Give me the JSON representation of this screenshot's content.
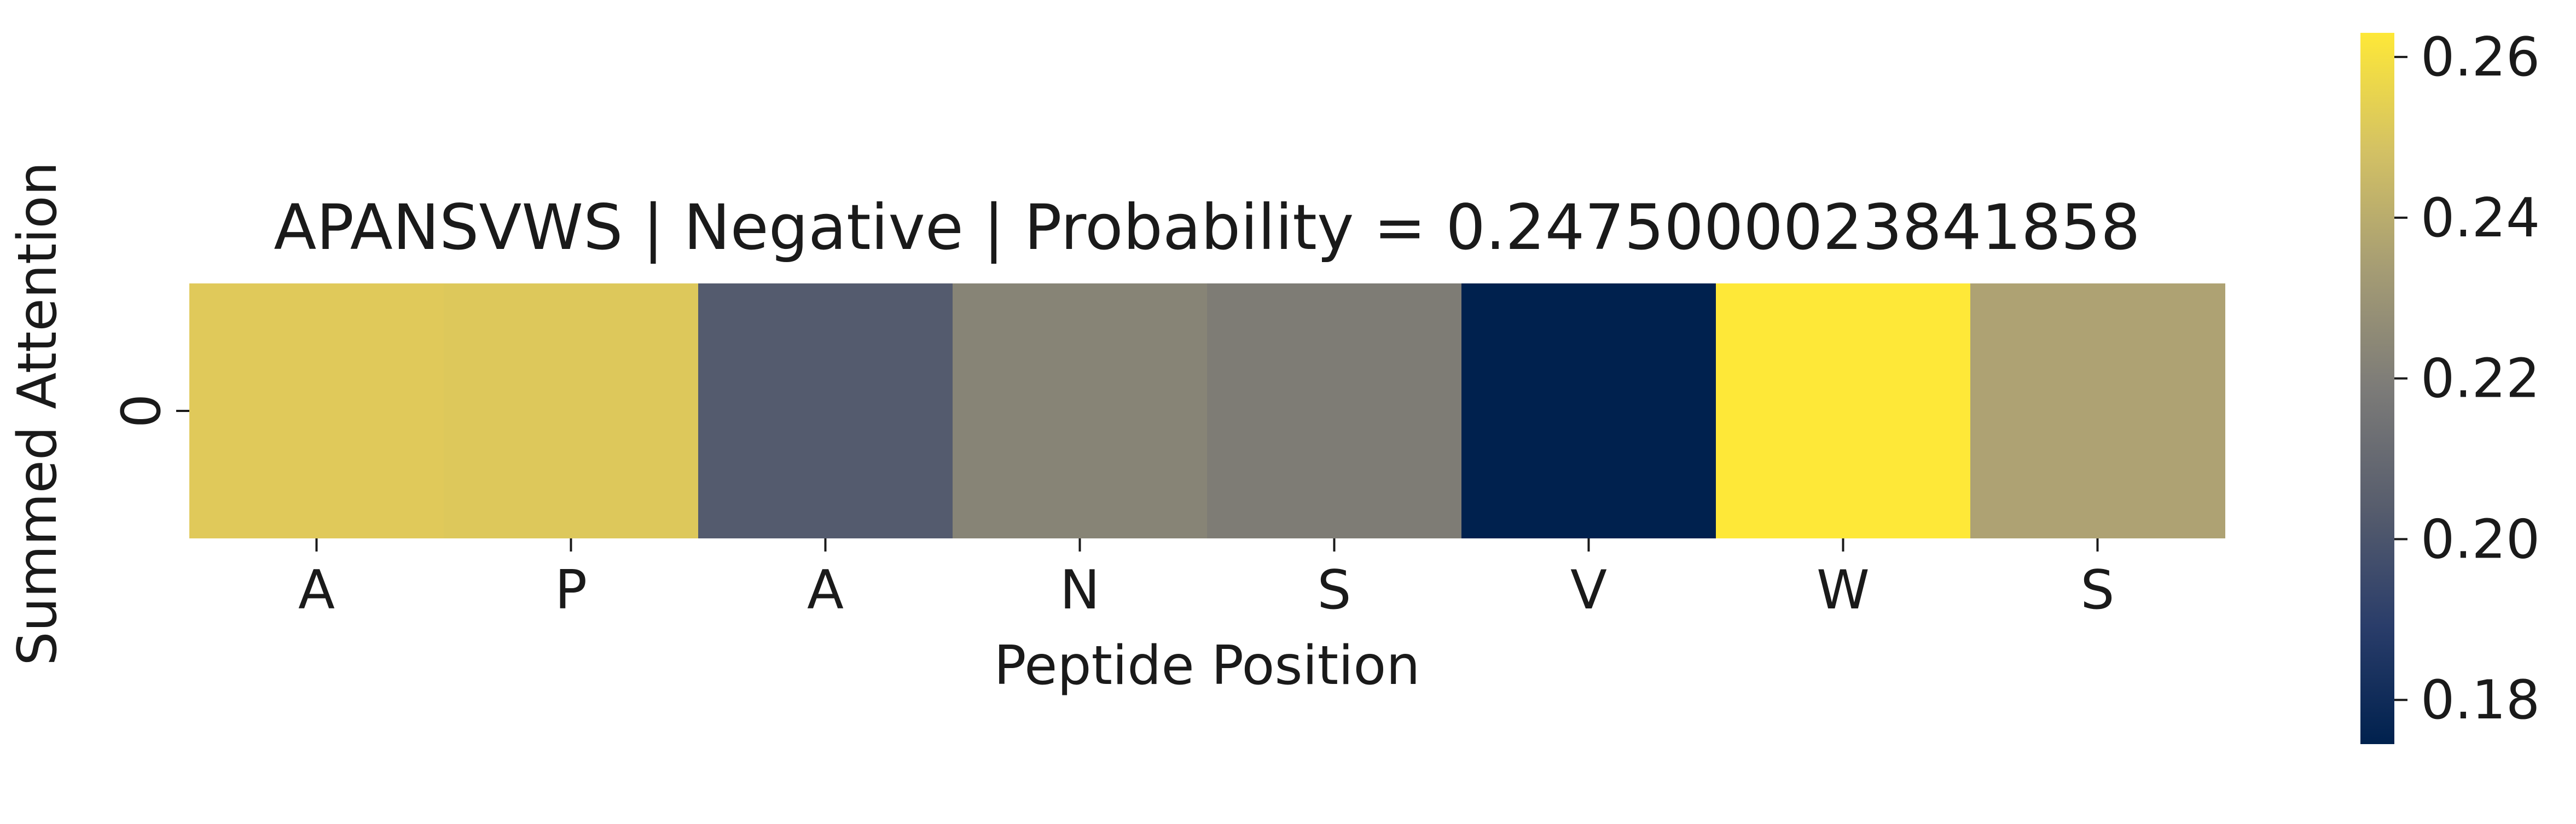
{
  "chart_data": {
    "type": "heatmap",
    "title": "APANSVWS | Negative | Probability = 0.2475000023841858",
    "xlabel": "Peptide Position",
    "ylabel": "Summed Attention",
    "x_tick_labels": [
      "A",
      "P",
      "A",
      "N",
      "S",
      "V",
      "W",
      "S"
    ],
    "y_tick_labels": [
      "0"
    ],
    "values": [
      [
        0.251,
        0.2505,
        0.205,
        0.227,
        0.224,
        0.1745,
        0.263,
        0.236
      ]
    ],
    "colormap": "cividis",
    "colorbar": {
      "vmin": 0.1745,
      "vmax": 0.263,
      "ticks": [
        0.18,
        0.2,
        0.22,
        0.24,
        0.26
      ],
      "tick_labels": [
        "0.18",
        "0.20",
        "0.22",
        "0.24",
        "0.26"
      ]
    },
    "cell_colors": [
      "#e0c95a",
      "#ddc85b",
      "#545b6e",
      "#878476",
      "#7e7c75",
      "#00214e",
      "#fee838",
      "#aea273"
    ],
    "colorbar_stops": [
      "#00214e",
      "#2a3d6a",
      "#575d6d",
      "#7c7b78",
      "#a59c74",
      "#d3c164",
      "#fee838"
    ],
    "grid": false,
    "legend": "colorbar-right"
  }
}
